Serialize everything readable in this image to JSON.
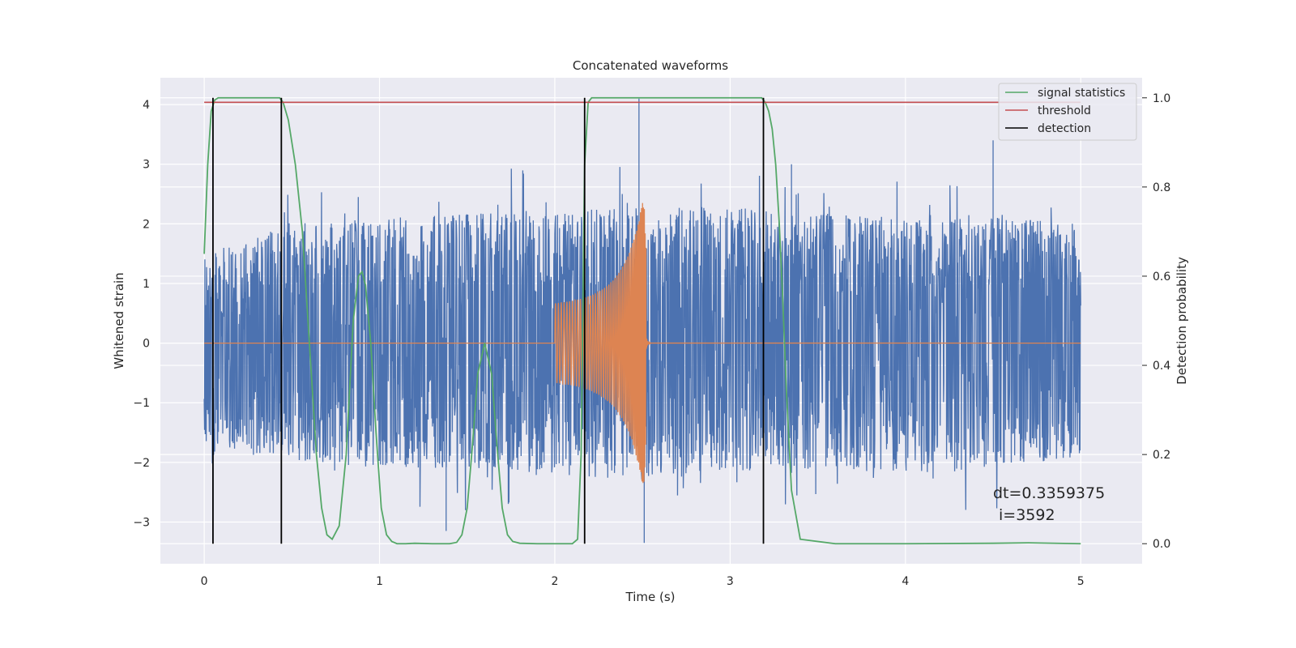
{
  "chart_data": {
    "type": "line",
    "title": "Concatenated waveforms",
    "xlabel": "Time (s)",
    "ylabel": "Whitened strain",
    "y2label": "Detection probability",
    "xlim": [
      -0.25,
      5.35
    ],
    "ylim": [
      -3.7,
      4.45
    ],
    "y2lim": [
      -0.045,
      1.045
    ],
    "xticks": [
      0,
      1,
      2,
      3,
      4,
      5
    ],
    "yticks": [
      -3,
      -2,
      -1,
      0,
      1,
      2,
      3,
      4
    ],
    "y2ticks": [
      0.0,
      0.2,
      0.4,
      0.6,
      0.8,
      1.0
    ],
    "grid": true,
    "legend_position": "top-right",
    "colors": {
      "strain": "#4c72b0",
      "waveform": "#dd8452",
      "signal_statistics": "#55a868",
      "threshold": "#c44e52",
      "detection": "#000000",
      "background": "#eaeaf2",
      "grid": "#ffffff"
    },
    "series": [
      {
        "name": "signal statistics",
        "axis": "right",
        "color": "#55a868",
        "x": [
          0.0,
          0.02,
          0.04,
          0.06,
          0.08,
          0.1,
          0.2,
          0.3,
          0.43,
          0.45,
          0.48,
          0.52,
          0.56,
          0.6,
          0.64,
          0.67,
          0.7,
          0.73,
          0.77,
          0.81,
          0.85,
          0.88,
          0.9,
          0.92,
          0.95,
          0.98,
          1.01,
          1.04,
          1.07,
          1.1,
          1.15,
          1.2,
          1.3,
          1.4,
          1.44,
          1.47,
          1.5,
          1.53,
          1.56,
          1.6,
          1.64,
          1.67,
          1.7,
          1.73,
          1.76,
          1.8,
          1.9,
          2.0,
          2.1,
          2.13,
          2.15,
          2.17,
          2.19,
          2.21,
          2.25,
          2.5,
          3.0,
          3.18,
          3.2,
          3.22,
          3.24,
          3.26,
          3.28,
          3.3,
          3.32,
          3.35,
          3.4,
          3.6,
          4.0,
          4.5,
          4.7,
          5.0
        ],
        "y": [
          0.65,
          0.85,
          0.97,
          0.995,
          1.0,
          1.0,
          1.0,
          1.0,
          1.0,
          0.99,
          0.95,
          0.85,
          0.7,
          0.45,
          0.2,
          0.08,
          0.02,
          0.01,
          0.04,
          0.2,
          0.5,
          0.6,
          0.61,
          0.58,
          0.45,
          0.25,
          0.08,
          0.02,
          0.005,
          0.0,
          0.0,
          0.001,
          0.0,
          0.0,
          0.003,
          0.02,
          0.08,
          0.22,
          0.38,
          0.45,
          0.38,
          0.22,
          0.08,
          0.02,
          0.005,
          0.001,
          0.0,
          0.0,
          0.0,
          0.01,
          0.2,
          0.85,
          0.99,
          1.0,
          1.0,
          1.0,
          1.0,
          1.0,
          0.99,
          0.97,
          0.93,
          0.85,
          0.72,
          0.55,
          0.35,
          0.12,
          0.01,
          0.0,
          0.0,
          0.001,
          0.002,
          0.0
        ]
      },
      {
        "name": "threshold",
        "axis": "right",
        "color": "#c44e52",
        "x": [
          0.0,
          5.0
        ],
        "y": [
          0.99,
          0.99
        ]
      },
      {
        "name": "detection",
        "axis": "right",
        "color": "#000000",
        "x": [
          0.05,
          0.44,
          2.17,
          3.19
        ],
        "y_range": [
          0.0,
          1.0
        ]
      }
    ],
    "strain_envelope": {
      "x": [
        0.0,
        0.5,
        1.0,
        1.5,
        2.0,
        2.5,
        3.0,
        3.5,
        4.0,
        4.5,
        5.0
      ],
      "upper": [
        1.5,
        2.0,
        2.1,
        2.2,
        2.2,
        2.3,
        2.3,
        2.2,
        2.1,
        2.2,
        2.0
      ],
      "lower": [
        -1.8,
        -2.0,
        -2.1,
        -2.1,
        -2.2,
        -2.3,
        -2.2,
        -2.1,
        -2.2,
        -2.1,
        -1.9
      ],
      "peaks": [
        {
          "x": 2.48,
          "y": 4.1
        },
        {
          "x": 2.51,
          "y": -3.35
        },
        {
          "x": 4.5,
          "y": 3.4
        },
        {
          "x": 0.05,
          "y": -2.8
        },
        {
          "x": 3.35,
          "y": 3.0
        },
        {
          "x": 1.38,
          "y": -3.15
        }
      ]
    },
    "waveform": {
      "x_start": 2.0,
      "x_merger": 2.52,
      "x_end": 2.55,
      "amp_start": 0.6,
      "amp_peak": 2.75
    },
    "annotations": [
      "dt=0.3359375",
      "i=3592"
    ]
  }
}
